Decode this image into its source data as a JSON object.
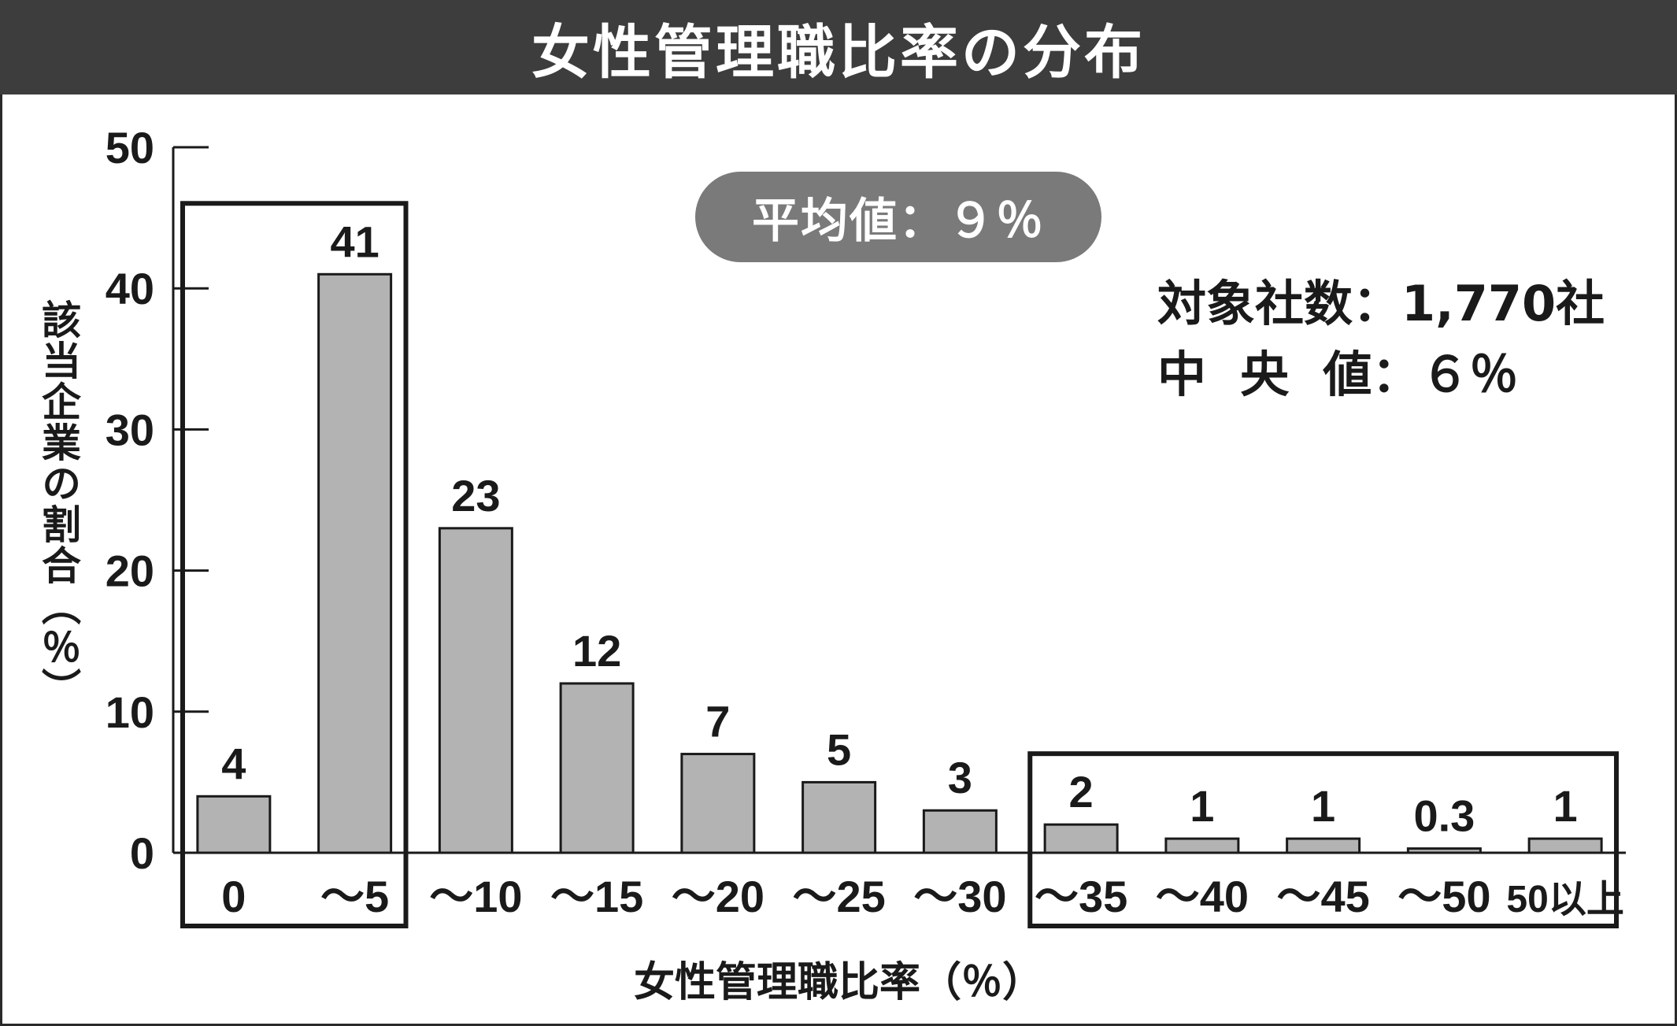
{
  "title": "女性管理職比率の分布",
  "chart_data": {
    "type": "bar",
    "categories": [
      "0",
      "～5",
      "～10",
      "～15",
      "～20",
      "～25",
      "～30",
      "～35",
      "～40",
      "～45",
      "～50",
      "50以上"
    ],
    "values": [
      4,
      41,
      23,
      12,
      7,
      5,
      3,
      2,
      1,
      1,
      0.3,
      1
    ],
    "value_labels": [
      "4",
      "41",
      "23",
      "12",
      "7",
      "5",
      "3",
      "2",
      "1",
      "1",
      "0.3",
      "1"
    ],
    "xlabel": "女性管理職比率（％）",
    "ylabel": "該当企業の割合（％）",
    "ylim": [
      0,
      50
    ],
    "yticks": [
      0,
      10,
      20,
      30,
      40,
      50
    ],
    "bar_color": "#b3b3b3",
    "highlight_groups": [
      {
        "from_category": "0",
        "to_category": "～5"
      },
      {
        "from_category": "～35",
        "to_category": "50以上"
      }
    ],
    "annotations": {
      "average": "平均値：９％",
      "company_count": "対象社数：1,770社",
      "median": "中  央  値：６％"
    }
  }
}
